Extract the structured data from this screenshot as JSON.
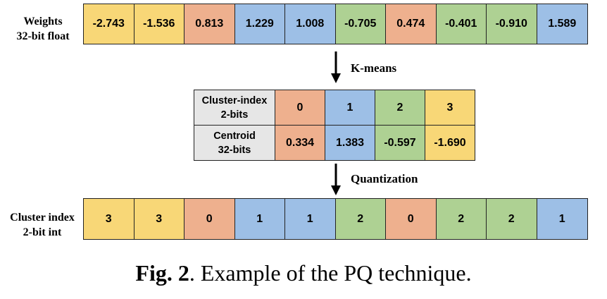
{
  "weights": {
    "label_line1": "Weights",
    "label_line2": "32-bit float",
    "values": [
      "-2.743",
      "-1.536",
      "0.813",
      "1.229",
      "1.008",
      "-0.705",
      "0.474",
      "-0.401",
      "-0.910",
      "1.589"
    ],
    "clusters": [
      3,
      3,
      0,
      1,
      1,
      2,
      0,
      2,
      2,
      1
    ]
  },
  "step1_label": "K-means",
  "codebook": {
    "index_header_line1": "Cluster-index",
    "index_header_line2": "2-bits",
    "centroid_header_line1": "Centroid",
    "centroid_header_line2": "32-bits",
    "indices": [
      "0",
      "1",
      "2",
      "3"
    ],
    "centroids": [
      "0.334",
      "1.383",
      "-0.597",
      "-1.690"
    ]
  },
  "step2_label": "Quantization",
  "indices_row": {
    "label_line1": "Cluster index",
    "label_line2": "2-bit int",
    "values": [
      "3",
      "3",
      "0",
      "1",
      "1",
      "2",
      "0",
      "2",
      "2",
      "1"
    ]
  },
  "caption": {
    "prefix": "Fig. 2",
    "text": ". Example of the PQ technique."
  },
  "colors": {
    "cluster0": "#eeb08e",
    "cluster1": "#9dbfe6",
    "cluster2": "#aed193",
    "cluster3": "#f8d777"
  }
}
